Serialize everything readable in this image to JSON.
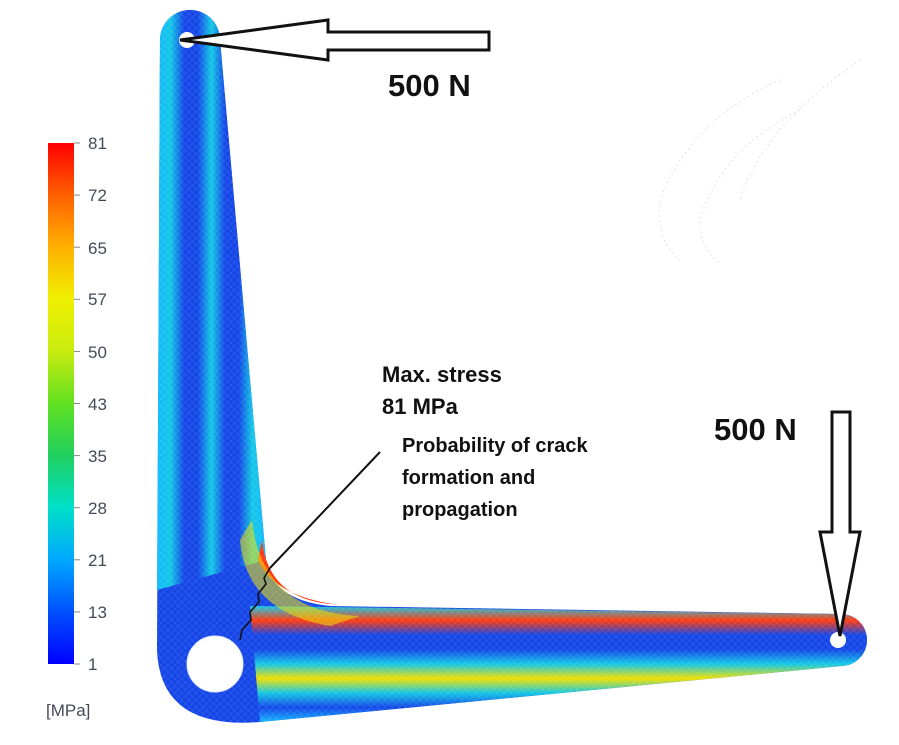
{
  "legend": {
    "unit": "[MPa]",
    "ticks": [
      "81",
      "72",
      "65",
      "57",
      "50",
      "43",
      "35",
      "28",
      "21",
      "13",
      "1"
    ],
    "colors": [
      "#0000ff",
      "#0050ff",
      "#00a8ff",
      "#00e0c8",
      "#20d060",
      "#60e020",
      "#c8ec10",
      "#f0f000",
      "#ffb000",
      "#ff6000",
      "#ff0000"
    ]
  },
  "forces": {
    "top": {
      "label": "500 N",
      "direction": "left"
    },
    "right": {
      "label": "500 N",
      "direction": "down"
    }
  },
  "annotation": {
    "max_line1": "Max. stress",
    "max_line2": "81 MPa",
    "crack_line1": "Probability of crack",
    "crack_line2": "formation and",
    "crack_line3": "propagation"
  },
  "part_colors": {
    "low": "#1446e8",
    "mid": "#12c8e6",
    "hot": "#ff3a10",
    "edge": "#14b8ff"
  }
}
